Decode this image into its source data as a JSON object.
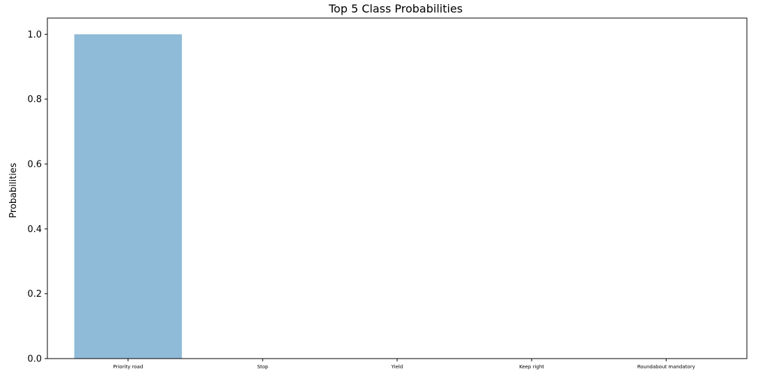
{
  "chart_data": {
    "type": "bar",
    "title": "Top 5 Class Probabilities",
    "xlabel": "",
    "ylabel": "Probabilities",
    "categories": [
      "Priority road",
      "Stop",
      "Yield",
      "Keep right",
      "Roundabout mandatory"
    ],
    "values": [
      1.0,
      0.0,
      0.0,
      0.0,
      0.0
    ],
    "ylim": [
      0.0,
      1.05
    ],
    "yticks": [
      0.0,
      0.2,
      0.4,
      0.6,
      0.8,
      1.0
    ],
    "ytick_labels": [
      "0.0",
      "0.2",
      "0.4",
      "0.6",
      "0.8",
      "1.0"
    ],
    "bar_color": "#8fbad8",
    "grid": false,
    "legend": "none"
  }
}
